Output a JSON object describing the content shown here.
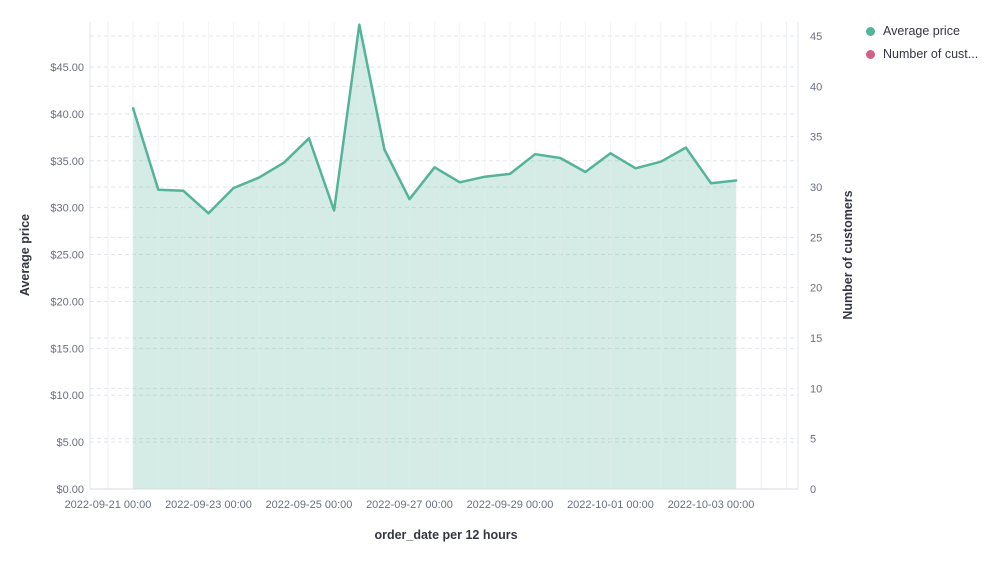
{
  "chart_data": {
    "type": "area",
    "title": "",
    "x_axis_title": "order_date per 12 hours",
    "x_tick_labels": [
      "2022-09-21 00:00",
      "2022-09-23 00:00",
      "2022-09-25 00:00",
      "2022-09-27 00:00",
      "2022-09-29 00:00",
      "2022-10-01 00:00",
      "2022-10-03 00:00"
    ],
    "y_left": {
      "title": "Average price",
      "tick_labels": [
        "$0.00",
        "$5.00",
        "$10.00",
        "$15.00",
        "$20.00",
        "$25.00",
        "$30.00",
        "$35.00",
        "$40.00",
        "$45.00"
      ],
      "tick_values": [
        0,
        5,
        10,
        15,
        20,
        25,
        30,
        35,
        40,
        45
      ],
      "range": [
        0,
        50
      ]
    },
    "y_right": {
      "title": "Number of customers",
      "tick_labels": [
        "0",
        "5",
        "10",
        "15",
        "20",
        "25",
        "30",
        "35",
        "40",
        "45"
      ],
      "tick_values": [
        0,
        5,
        10,
        15,
        20,
        25,
        30,
        35,
        40,
        45
      ],
      "range": [
        0,
        46.5
      ]
    },
    "grid": true,
    "legend_position": "top-right",
    "legend": [
      {
        "label": "Average price",
        "color": "#54B399"
      },
      {
        "label": "Number of cust...",
        "color": "#D36086"
      }
    ],
    "series": [
      {
        "name": "Average price",
        "type": "area",
        "axis": "left",
        "color": "#54B399",
        "fill_color": "rgba(84,179,153,0.25)",
        "x": [
          "2022-09-21 12:00",
          "2022-09-22 00:00",
          "2022-09-22 12:00",
          "2022-09-23 00:00",
          "2022-09-23 12:00",
          "2022-09-24 00:00",
          "2022-09-24 12:00",
          "2022-09-25 00:00",
          "2022-09-25 12:00",
          "2022-09-26 00:00",
          "2022-09-26 12:00",
          "2022-09-27 00:00",
          "2022-09-27 12:00",
          "2022-09-28 00:00",
          "2022-09-28 12:00",
          "2022-09-29 00:00",
          "2022-09-29 12:00",
          "2022-09-30 00:00",
          "2022-09-30 12:00",
          "2022-10-01 00:00",
          "2022-10-01 12:00",
          "2022-10-02 00:00",
          "2022-10-02 12:00",
          "2022-10-03 00:00",
          "2022-10-03 12:00"
        ],
        "values": [
          40.6,
          31.9,
          31.8,
          29.4,
          32.1,
          33.2,
          34.8,
          37.4,
          29.7,
          49.5,
          36.2,
          30.9,
          34.3,
          32.7,
          33.3,
          33.6,
          35.7,
          35.3,
          33.8,
          35.8,
          34.2,
          34.9,
          36.4,
          32.6,
          32.9
        ]
      }
    ],
    "colors": {
      "grid_vertical": "#edeff2",
      "grid_dashed": "#e2e5ea",
      "axis_line": "#d6dae0",
      "tick_label": "#69707D",
      "title_text": "#343741"
    }
  }
}
